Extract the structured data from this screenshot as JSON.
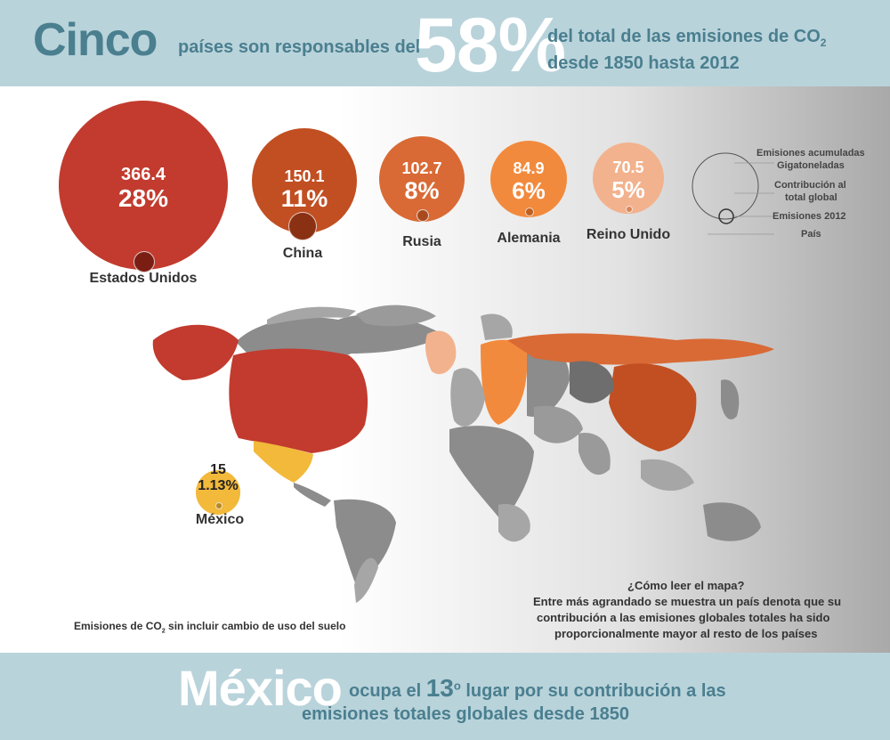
{
  "header": {
    "lead_word": "Cinco",
    "mid_text": "países son responsables del",
    "big_percent": "58%",
    "right_line1": "del total de las emisiones de CO",
    "right_line1_sub": "2",
    "right_line2": "desde 1850 hasta 2012"
  },
  "legend": {
    "line1": "Emisiones acumuladas",
    "line2": "Gigatoneladas",
    "line3": "Contribución al",
    "line4": "total global",
    "line5": "Emisiones 2012",
    "line6": "País"
  },
  "chart_data": {
    "type": "bubble",
    "unit": "Gigatoneladas",
    "series": [
      {
        "country": "Estados Unidos",
        "value": "366.4",
        "share": "28%",
        "color": "#c23b2e"
      },
      {
        "country": "China",
        "value": "150.1",
        "share": "11%",
        "color": "#c14f22"
      },
      {
        "country": "Rusia",
        "value": "102.7",
        "share": "8%",
        "color": "#d96a35"
      },
      {
        "country": "Alemania",
        "value": "84.9",
        "share": "6%",
        "color": "#f28a3d"
      },
      {
        "country": "Reino Unido",
        "value": "70.5",
        "share": "5%",
        "color": "#f2b28e"
      },
      {
        "country": "México",
        "value": "15",
        "share": "1.13%",
        "color": "#f2b93a"
      }
    ]
  },
  "notes": {
    "map_note": "Emisiones de CO",
    "map_note_sub": "2",
    "map_note_rest": " sin incluir cambio de uso del suelo",
    "how_to_read_title": "¿Cómo leer el mapa?",
    "how_to_read_line1": "Entre más agrandado se muestra un país denota que su",
    "how_to_read_line2": "contribución a las emisiones globales totales ha sido",
    "how_to_read_line3": "proporcionalmente mayor al resto de los países"
  },
  "footer": {
    "lead_word": "México",
    "text1": "ocupa el",
    "rank": "13",
    "rank_sup": "o",
    "text2": "lugar por su contribución a las",
    "line2": "emisiones totales globales desde 1850"
  }
}
